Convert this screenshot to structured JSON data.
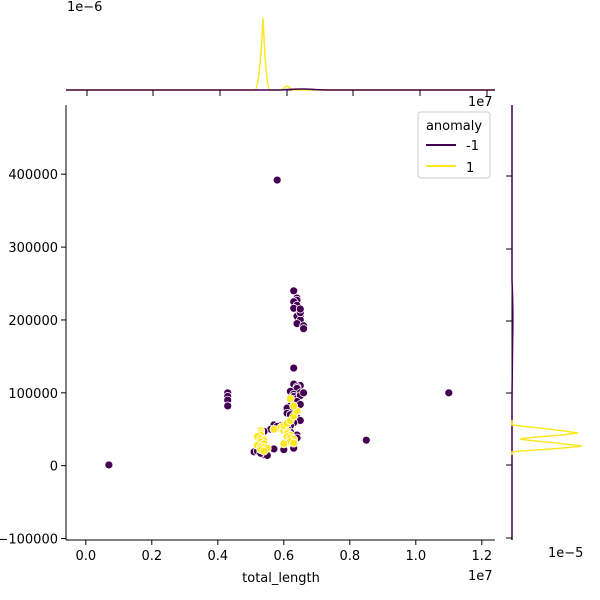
{
  "chart_data": {
    "type": "scatter",
    "xlabel": "total_length",
    "ylabel": "",
    "x_offset_label": "1e7",
    "y_offset_label": "",
    "xlim": [
      -0.06,
      1.24
    ],
    "ylim": [
      -102000,
      495000
    ],
    "x_ticks": [
      0.0,
      0.2,
      0.4,
      0.6,
      0.8,
      1.0,
      1.2
    ],
    "x_tick_labels": [
      "0.0",
      "0.2",
      "0.4",
      "0.6",
      "0.8",
      "1.0",
      "1.2"
    ],
    "y_ticks": [
      -100000,
      0,
      100000,
      200000,
      300000,
      400000
    ],
    "y_tick_labels": [
      "−100000",
      "0",
      "100000",
      "200000",
      "300000",
      "400000"
    ],
    "legend": {
      "title": "anomaly",
      "placement": "upper right",
      "entries": [
        "-1",
        "1"
      ]
    },
    "colors": {
      "-1": "#440154",
      "1": "#fde725"
    },
    "series": [
      {
        "name": "-1",
        "color": "#440154",
        "x": [
          0.07,
          0.43,
          0.43,
          0.43,
          0.43,
          0.58,
          0.63,
          0.64,
          0.64,
          0.63,
          0.64,
          0.63,
          0.65,
          0.65,
          0.64,
          0.65,
          0.64,
          0.66,
          0.66,
          0.65,
          0.65,
          0.63,
          0.63,
          0.65,
          0.64,
          0.64,
          0.62,
          0.63,
          0.63,
          0.64,
          0.65,
          0.65,
          0.66,
          0.64,
          0.65,
          0.62,
          0.61,
          0.63,
          0.64,
          0.61,
          0.62,
          0.64,
          0.65,
          0.63,
          0.62,
          0.6,
          0.61,
          0.62,
          0.64,
          0.57,
          0.59,
          0.61,
          0.56,
          0.58,
          0.54,
          0.53,
          0.52,
          0.51,
          0.54,
          0.6,
          0.63,
          0.64,
          0.61,
          0.85,
          1.1,
          0.52,
          0.57,
          0.53,
          0.55
        ],
        "y": [
          1000,
          100000,
          95000,
          90000,
          82000,
          392000,
          240000,
          230000,
          227000,
          225000,
          220000,
          216000,
          210000,
          206000,
          205000,
          200000,
          195000,
          192000,
          188000,
          210000,
          215000,
          134000,
          112000,
          110000,
          108000,
          106000,
          102000,
          98000,
          95000,
          92000,
          100000,
          96000,
          100000,
          88000,
          84000,
          82000,
          79000,
          76000,
          74000,
          72000,
          70000,
          66000,
          62000,
          59000,
          55000,
          52000,
          49000,
          46000,
          42000,
          56000,
          55000,
          52000,
          50000,
          54000,
          47000,
          44000,
          22000,
          19000,
          15000,
          22000,
          24000,
          38000,
          36000,
          35000,
          100000,
          20000,
          23000,
          17000,
          14000
        ]
      },
      {
        "name": "1",
        "color": "#fde725",
        "x": [
          0.53,
          0.53,
          0.53,
          0.52,
          0.53,
          0.54,
          0.53,
          0.54,
          0.52,
          0.53,
          0.54,
          0.55,
          0.59,
          0.6,
          0.6,
          0.61,
          0.61,
          0.62,
          0.61,
          0.62,
          0.63,
          0.62,
          0.63,
          0.6,
          0.61,
          0.62,
          0.63,
          0.64,
          0.63,
          0.62,
          0.53,
          0.54,
          0.57,
          0.6
        ],
        "y": [
          48000,
          45000,
          42000,
          40000,
          37000,
          35000,
          33000,
          30000,
          28000,
          26000,
          25000,
          24000,
          52000,
          50000,
          48000,
          47000,
          44000,
          42000,
          40000,
          38000,
          36000,
          33000,
          31000,
          55000,
          58000,
          62000,
          68000,
          75000,
          82000,
          92000,
          22000,
          20000,
          50000,
          30000
        ]
      }
    ],
    "top_marginal": {
      "offset_label": "1e−6",
      "note": "density of total_length by anomaly"
    },
    "right_marginal": {
      "offset_label": "1e−5",
      "note": "density of y by anomaly"
    }
  }
}
